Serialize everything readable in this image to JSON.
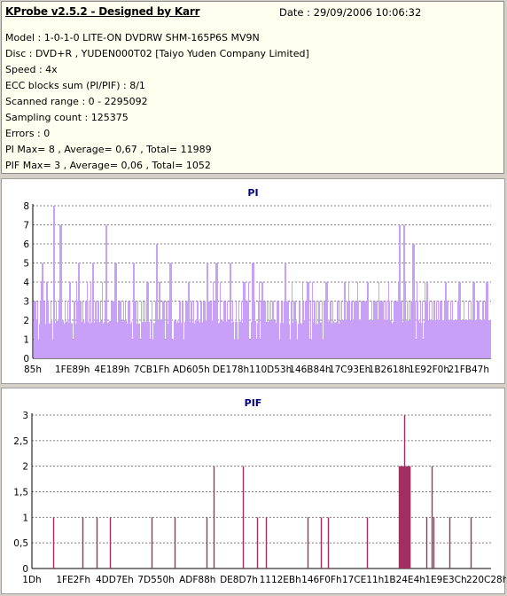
{
  "header": {
    "title": "KProbe v2.5.2 - Designed by Karr",
    "date": "Date : 29/09/2006 10:06:32"
  },
  "info": [
    "Model : 1-0-1-0 LITE-ON DVDRW SHM-165P6S MV9N",
    "Disc : DVD+R , YUDEN000T02 [Taiyo Yuden Company Limited]",
    "Speed : 4x",
    "ECC blocks sum (PI/PIF) : 8/1",
    "Scanned range : 0 - 2295092",
    "Sampling count : 125375",
    "Errors : 0",
    "PI Max= 8 , Average= 0,67 , Total= 11989",
    "PIF Max= 3 , Average= 0,06 , Total= 1052"
  ],
  "colors": {
    "pi": "#c8a0f8",
    "pi_line": "#b070f0",
    "pif": "#a03060",
    "grid": "#808080"
  },
  "chart_data": [
    {
      "type": "bar",
      "title": "PI",
      "y_ticks": [
        "0",
        "1",
        "2",
        "3",
        "4",
        "5",
        "6",
        "7",
        "8"
      ],
      "ylim": [
        0,
        8
      ],
      "x_ticks": [
        "85h",
        "1FE89h",
        "4E189h",
        "7CB1Fh",
        "AD605h",
        "DE178h",
        "110D53h",
        "146B84h",
        "17C93Eh",
        "1B2618h",
        "1E92F0h",
        "21FB47h"
      ],
      "grid": true,
      "baseline_approx": 2,
      "spikes_approx": [
        [
          0.02,
          5
        ],
        [
          0.03,
          4
        ],
        [
          0.045,
          8
        ],
        [
          0.06,
          7
        ],
        [
          0.08,
          4
        ],
        [
          0.1,
          5
        ],
        [
          0.13,
          5
        ],
        [
          0.16,
          7
        ],
        [
          0.18,
          5
        ],
        [
          0.22,
          5
        ],
        [
          0.27,
          6
        ],
        [
          0.3,
          5
        ],
        [
          0.34,
          4
        ],
        [
          0.38,
          5
        ],
        [
          0.4,
          5
        ],
        [
          0.43,
          5
        ],
        [
          0.46,
          4
        ],
        [
          0.48,
          5
        ],
        [
          0.5,
          4
        ],
        [
          0.55,
          5
        ],
        [
          0.6,
          4
        ],
        [
          0.64,
          4
        ],
        [
          0.68,
          4
        ],
        [
          0.72,
          3
        ],
        [
          0.75,
          3
        ],
        [
          0.8,
          7
        ],
        [
          0.81,
          7
        ],
        [
          0.83,
          6
        ],
        [
          0.86,
          4
        ],
        [
          0.9,
          4
        ],
        [
          0.93,
          4
        ],
        [
          0.96,
          4
        ],
        [
          0.99,
          4
        ]
      ]
    },
    {
      "type": "bar",
      "title": "PIF",
      "y_ticks": [
        "0",
        "0,5",
        "1",
        "1,5",
        "2",
        "2,5",
        "3"
      ],
      "ylim": [
        0,
        3
      ],
      "x_ticks": [
        "1Dh",
        "1FE2Fh",
        "4DD7Eh",
        "7D550h",
        "ADF88h",
        "DE8D7h",
        "1112EBh",
        "146F0Fh",
        "17CE11h",
        "1B24E4h",
        "1E9E3Ch",
        "220C28h"
      ],
      "grid": true,
      "spikes_approx": [
        [
          0.046,
          1
        ],
        [
          0.11,
          1
        ],
        [
          0.14,
          1
        ],
        [
          0.17,
          1
        ],
        [
          0.26,
          1
        ],
        [
          0.31,
          1
        ],
        [
          0.38,
          1
        ],
        [
          0.395,
          2
        ],
        [
          0.46,
          2
        ],
        [
          0.49,
          1
        ],
        [
          0.51,
          1
        ],
        [
          0.6,
          1
        ],
        [
          0.63,
          1
        ],
        [
          0.645,
          1
        ],
        [
          0.73,
          1
        ],
        [
          0.8,
          2
        ],
        [
          0.805,
          2
        ],
        [
          0.81,
          3
        ],
        [
          0.815,
          2
        ],
        [
          0.82,
          2
        ],
        [
          0.86,
          1
        ],
        [
          0.87,
          2
        ],
        [
          0.875,
          1
        ],
        [
          0.91,
          1
        ],
        [
          0.955,
          1
        ]
      ]
    }
  ]
}
